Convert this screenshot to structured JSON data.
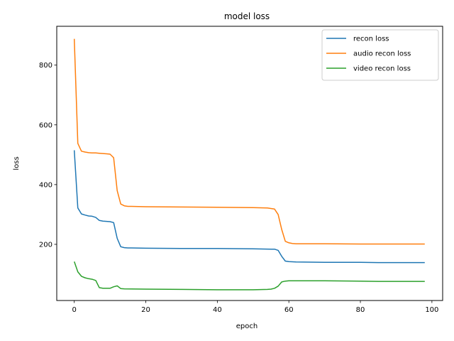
{
  "chart_data": {
    "type": "line",
    "title": "model loss",
    "xlabel": "epoch",
    "ylabel": "loss",
    "xlim": [
      -4.9,
      103
    ],
    "ylim": [
      12,
      930
    ],
    "xticks": [
      0,
      20,
      40,
      60,
      80,
      100
    ],
    "yticks": [
      200,
      400,
      600,
      800
    ],
    "grid": false,
    "legend_position": "top-right",
    "series": [
      {
        "name": "recon loss",
        "color": "#1f77b4",
        "x": [
          0,
          1,
          2,
          3,
          4,
          5,
          6,
          7,
          8,
          9,
          10,
          11,
          12,
          13,
          14,
          15,
          16,
          20,
          30,
          40,
          50,
          55,
          56,
          57,
          58,
          59,
          60,
          62,
          70,
          80,
          85,
          90,
          98
        ],
        "y": [
          515,
          322,
          302,
          298,
          295,
          294,
          290,
          280,
          278,
          277,
          276,
          273,
          220,
          192,
          189,
          188,
          188,
          187,
          186,
          186,
          185,
          184,
          184,
          180,
          160,
          144,
          142,
          141,
          140,
          140,
          139,
          139,
          139
        ]
      },
      {
        "name": "audio recon loss",
        "color": "#ff7f0e",
        "x": [
          0,
          1,
          2,
          3,
          4,
          5,
          6,
          7,
          8,
          9,
          10,
          11,
          12,
          13,
          14,
          15,
          16,
          20,
          30,
          40,
          50,
          54,
          55,
          56,
          57,
          58,
          59,
          60,
          61,
          62,
          70,
          80,
          90,
          98
        ],
        "y": [
          888,
          538,
          512,
          509,
          507,
          506,
          506,
          505,
          504,
          503,
          502,
          490,
          380,
          335,
          329,
          327,
          327,
          326,
          325,
          324,
          323,
          322,
          320,
          318,
          300,
          250,
          210,
          205,
          203,
          202,
          202,
          201,
          201,
          201
        ]
      },
      {
        "name": "video recon loss",
        "color": "#2ca02c",
        "x": [
          0,
          1,
          2,
          3,
          4,
          5,
          6,
          7,
          8,
          9,
          10,
          11,
          12,
          13,
          14,
          20,
          30,
          40,
          50,
          54,
          55,
          56,
          57,
          58,
          59,
          60,
          70,
          80,
          85,
          90,
          98
        ],
        "y": [
          142,
          108,
          93,
          88,
          85,
          83,
          79,
          55,
          53,
          53,
          53,
          58,
          61,
          52,
          51,
          50,
          49,
          48,
          48,
          49,
          50,
          53,
          60,
          74,
          77,
          78,
          78,
          77,
          76,
          76,
          76
        ]
      }
    ]
  }
}
